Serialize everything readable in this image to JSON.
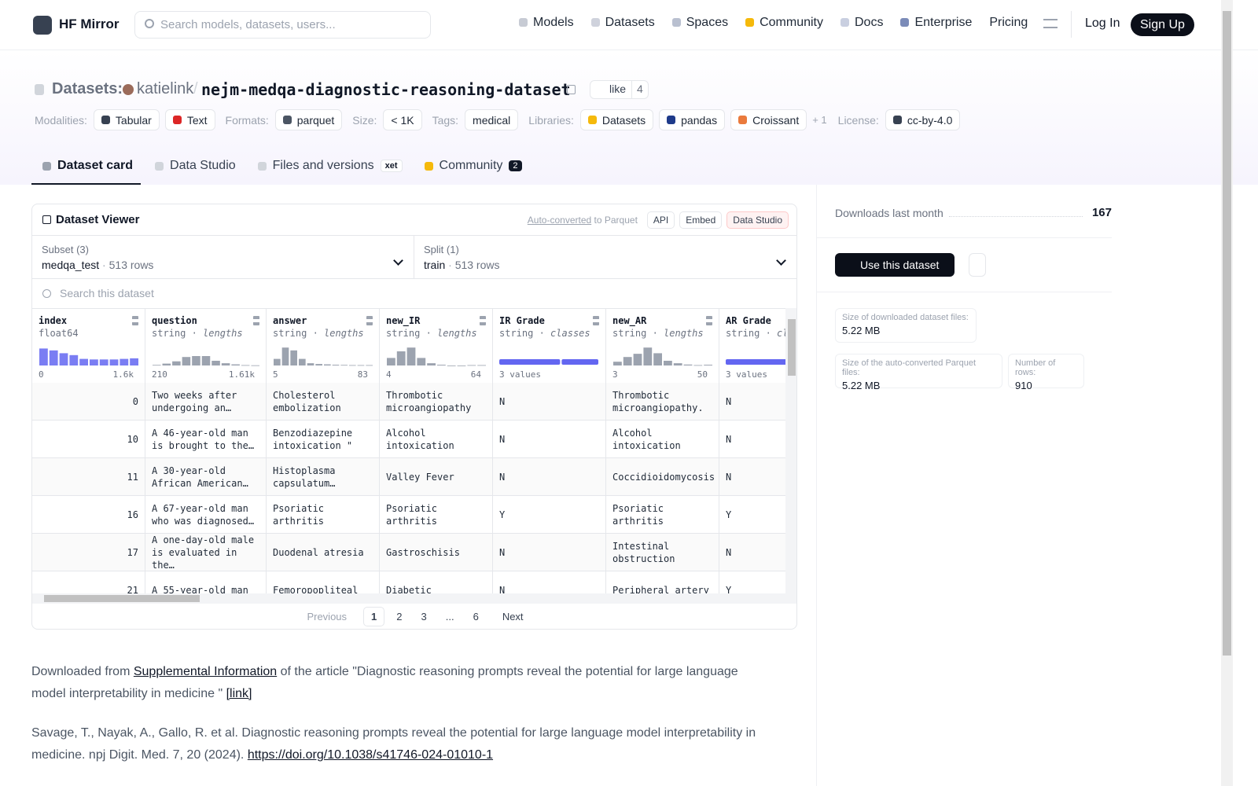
{
  "nav": {
    "brand": "HF Mirror",
    "search": "Search models, datasets, users...",
    "links": [
      "Models",
      "Datasets",
      "Spaces",
      "Community",
      "Docs",
      "Enterprise",
      "Pricing"
    ],
    "login": "Log In",
    "signup": "Sign Up"
  },
  "header": {
    "kind": "Datasets:",
    "owner": "katielink",
    "sep": "/",
    "name": "nejm-medqa-diagnostic-reasoning-dataset",
    "like": "like",
    "likes": 4,
    "tags": [
      {
        "label": "Modalities:",
        "items": [
          "Tabular",
          "Text"
        ]
      },
      {
        "label": "Formats:",
        "items": [
          "parquet"
        ]
      },
      {
        "label": "Size:",
        "items": [
          "< 1K"
        ]
      },
      {
        "label": "Tags:",
        "items": [
          "medical"
        ]
      },
      {
        "label": "Libraries:",
        "items": [
          "Datasets",
          "pandas",
          "Croissant"
        ],
        "more": "+ 1"
      },
      {
        "label": "License:",
        "items": [
          "cc-by-4.0"
        ]
      }
    ]
  },
  "tabs": [
    {
      "label": "Dataset card"
    },
    {
      "label": "Data Studio"
    },
    {
      "label": "Files and versions",
      "badge": "xet"
    },
    {
      "label": "Community",
      "badge": 2
    }
  ],
  "viewer": {
    "title": "Dataset Viewer",
    "auto": "Auto-converted",
    "to": "to Parquet",
    "api": "API",
    "embed": "Embed",
    "studio": "Data Studio",
    "subset": {
      "label": "Subset (3)",
      "value": "medqa_test",
      "rows": "513 rows"
    },
    "split": {
      "label": "Split (1)",
      "value": "train",
      "rows": "513 rows"
    },
    "search": "Search this dataset",
    "columns": [
      {
        "name": "index",
        "type": "float64",
        "hist": [
          90,
          80,
          65,
          55,
          35,
          32,
          32,
          32,
          35,
          38
        ],
        "min": "0",
        "max": "1.6k"
      },
      {
        "name": "question",
        "type": "string",
        "sub": "lengths",
        "hist": [
          3,
          10,
          22,
          45,
          50,
          50,
          25,
          12,
          6,
          2,
          1
        ],
        "min": "210",
        "max": "1.61k"
      },
      {
        "name": "answer",
        "type": "string",
        "sub": "lengths",
        "hist": [
          35,
          95,
          80,
          35,
          12,
          8,
          6,
          4,
          3,
          2,
          2,
          2
        ],
        "min": "5",
        "max": "83"
      },
      {
        "name": "new_IR",
        "type": "string",
        "sub": "lengths",
        "hist": [
          40,
          75,
          95,
          40,
          12,
          4,
          0,
          0,
          2,
          2
        ],
        "min": "4",
        "max": "64"
      },
      {
        "name": "IR Grade",
        "type": "string",
        "sub": "classes",
        "classes": [
          62,
          38
        ],
        "summary": "3 values"
      },
      {
        "name": "new_AR",
        "type": "string",
        "sub": "lengths",
        "hist": [
          20,
          45,
          62,
          95,
          65,
          25,
          12,
          5,
          2,
          4
        ],
        "min": "3",
        "max": "50"
      },
      {
        "name": "AR Grade",
        "type": "string",
        "sub": "classes",
        "classes": [
          100
        ],
        "summary": "3 values"
      }
    ],
    "rows": [
      [
        0,
        "Two weeks after undergoing an…",
        "Cholesterol embolization",
        "Thrombotic microangiopathy",
        "N",
        "Thrombotic microangiopathy.",
        "N"
      ],
      [
        10,
        "A 46-year-old man is brought to the…",
        "Benzodiazepine intoxication \"",
        "Alcohol intoxication",
        "N",
        "Alcohol intoxication",
        "N"
      ],
      [
        11,
        "A 30-year-old African American…",
        "Histoplasma capsulatum…",
        "Valley Fever",
        "N",
        "Coccidioidomycosis",
        "N"
      ],
      [
        16,
        "A 67-year-old man who was diagnosed…",
        "Psoriatic arthritis",
        "Psoriatic arthritis",
        "Y",
        "Psoriatic arthritis",
        "Y"
      ],
      [
        17,
        "A one-day-old male is evaluated in the…",
        "Duodenal atresia",
        "Gastroschisis",
        "N",
        "Intestinal obstruction",
        "N"
      ],
      [
        21,
        "A 55-year-old man",
        "Femoropopliteal",
        "Diabetic",
        "N",
        "Peripheral artery",
        "Y"
      ]
    ],
    "pager": {
      "prev": "Previous",
      "pages": [
        1,
        2,
        3,
        "...",
        6
      ],
      "next": "Next"
    }
  },
  "card": {
    "p1": {
      "a": "Downloaded from",
      "link": "Supplemental Information",
      "b": "of the article \"Diagnostic reasoning prompts reveal the potential for large language model interpretability in medicine \"",
      "link2": "[link]"
    },
    "p2": {
      "a": "Savage, T., Nayak, A., Gallo, R. et al. Diagnostic reasoning prompts reveal the potential for large language model interpretability in medicine. npj Digit. Med. 7, 20 (2024).",
      "link": "https://doi.org/10.1038/s41746-024-01010-1"
    }
  },
  "sidebar": {
    "downloads_label": "Downloads last month",
    "downloads": 167,
    "use": "Use this dataset",
    "stats": [
      {
        "label": "Size of downloaded dataset files:",
        "value": "5.22 MB"
      },
      {
        "label": "Size of the auto-converted Parquet files:",
        "value": "5.22 MB"
      },
      {
        "label": "Number of rows:",
        "value": 910
      }
    ]
  }
}
